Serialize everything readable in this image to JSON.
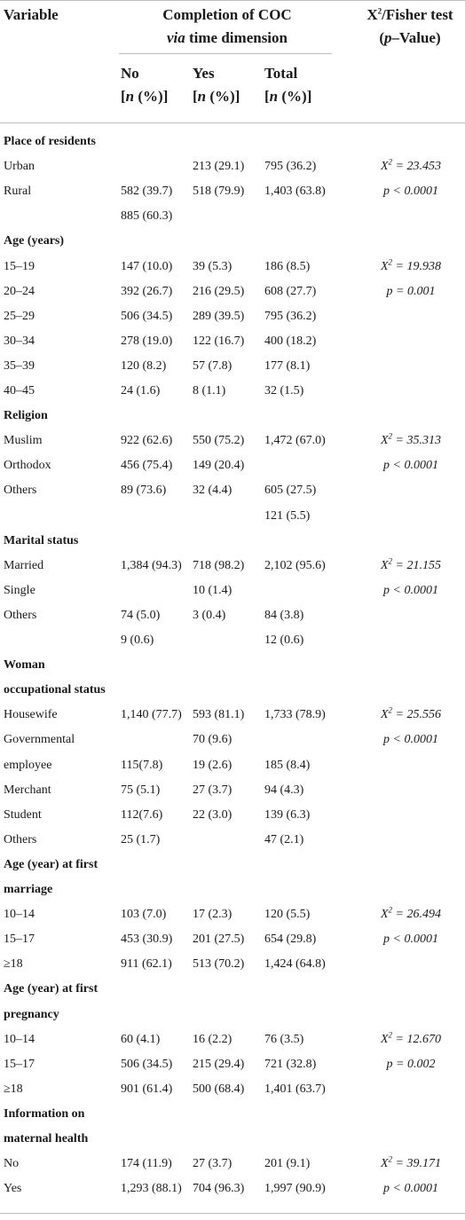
{
  "header": {
    "variable": "Variable",
    "completion_line1": "Completion of COC",
    "completion_via": "via",
    "completion_line2_rest": " time dimension",
    "test_x": "X",
    "test_sup": "2",
    "test_rest": "/Fisher test",
    "pvalue_open": "(",
    "pvalue_p": "p",
    "pvalue_rest": "–Value)",
    "no": "No",
    "yes": "Yes",
    "total": "Total",
    "n_open": "[",
    "n_n": "n",
    "n_rest": " (%)]"
  },
  "rows": [
    {
      "label": "Place of residents",
      "section": true
    },
    {
      "label": "Urban",
      "no": "",
      "yes": "213 (29.1)",
      "total": "795 (36.2)",
      "stat": "X² = 23.453"
    },
    {
      "label": "Rural",
      "no": "582 (39.7)",
      "yes": "518 (79.9)",
      "total": "1,403 (63.8)",
      "stat": "p < 0.0001"
    },
    {
      "label": "",
      "no": "885 (60.3)",
      "yes": "",
      "total": "",
      "stat": ""
    },
    {
      "label": "Age (years)",
      "section": true
    },
    {
      "label": "15–19",
      "no": "147 (10.0)",
      "yes": "39 (5.3)",
      "total": "186 (8.5)",
      "stat": "X² = 19.938"
    },
    {
      "label": "20–24",
      "no": "392 (26.7)",
      "yes": "216 (29.5)",
      "total": "608 (27.7)",
      "stat": "p = 0.001"
    },
    {
      "label": "25–29",
      "no": "506 (34.5)",
      "yes": "289 (39.5)",
      "total": "795 (36.2)",
      "stat": ""
    },
    {
      "label": "30–34",
      "no": "278 (19.0)",
      "yes": "122 (16.7)",
      "total": "400 (18.2)",
      "stat": ""
    },
    {
      "label": "35–39",
      "no": "120 (8.2)",
      "yes": "57 (7.8)",
      "total": "177 (8.1)",
      "stat": ""
    },
    {
      "label": "40–45",
      "no": "24 (1.6)",
      "yes": "8 (1.1)",
      "total": "32 (1.5)",
      "stat": ""
    },
    {
      "label": "Religion",
      "section": true
    },
    {
      "label": "Muslim",
      "no": "922 (62.6)",
      "yes": "550 (75.2)",
      "total": "1,472 (67.0)",
      "stat": "X² = 35.313"
    },
    {
      "label": "Orthodox",
      "no": "456 (75.4)",
      "yes": "149 (20.4)",
      "total": "",
      "stat": "p < 0.0001"
    },
    {
      "label": "Others",
      "no": "89 (73.6)",
      "yes": "32 (4.4)",
      "total": "605 (27.5)",
      "stat": ""
    },
    {
      "label": "",
      "no": "",
      "yes": "",
      "total": "121 (5.5)",
      "stat": ""
    },
    {
      "label": "Marital status",
      "section": true
    },
    {
      "label": "Married",
      "no": "1,384 (94.3)",
      "yes": "718 (98.2)",
      "total": "2,102 (95.6)",
      "stat": "X² = 21.155"
    },
    {
      "label": "Single",
      "no": "",
      "yes": "10 (1.4)",
      "total": "",
      "stat": "p < 0.0001"
    },
    {
      "label": "Others",
      "no": "74 (5.0)",
      "yes": "3 (0.4)",
      "total": "84 (3.8)",
      "stat": ""
    },
    {
      "label": "",
      "no": "9 (0.6)",
      "yes": "",
      "total": "12 (0.6)",
      "stat": ""
    },
    {
      "label": "Woman",
      "section": true
    },
    {
      "label": "occupational status",
      "section": true
    },
    {
      "label": "Housewife",
      "no": "1,140 (77.7)",
      "yes": "593 (81.1)",
      "total": "1,733 (78.9)",
      "stat": "X² = 25.556"
    },
    {
      "label": "Governmental",
      "no": "",
      "yes": "70 (9.6)",
      "total": "",
      "stat": "p < 0.0001"
    },
    {
      "label": "employee",
      "no": "115(7.8)",
      "yes": "19 (2.6)",
      "total": "185 (8.4)",
      "stat": ""
    },
    {
      "label": "Merchant",
      "no": "75 (5.1)",
      "yes": "27 (3.7)",
      "total": "94 (4.3)",
      "stat": ""
    },
    {
      "label": "Student",
      "no": "112(7.6)",
      "yes": "22 (3.0)",
      "total": "139 (6.3)",
      "stat": ""
    },
    {
      "label": "Others",
      "no": "25 (1.7)",
      "yes": "",
      "total": "47 (2.1)",
      "stat": ""
    },
    {
      "label": "Age (year) at first",
      "section": true
    },
    {
      "label": "marriage",
      "section": true
    },
    {
      "label": "10–14",
      "no": "103 (7.0)",
      "yes": "17 (2.3)",
      "total": "120 (5.5)",
      "stat": "X² = 26.494"
    },
    {
      "label": "15–17",
      "no": "453 (30.9)",
      "yes": "201 (27.5)",
      "total": "654 (29.8)",
      "stat": "p < 0.0001"
    },
    {
      "label": "≥18",
      "no": "911 (62.1)",
      "yes": "513 (70.2)",
      "total": "1,424 (64.8)",
      "stat": ""
    },
    {
      "label": "Age (year) at first",
      "section": true
    },
    {
      "label": "pregnancy",
      "section": true
    },
    {
      "label": "10–14",
      "no": "60 (4.1)",
      "yes": "16 (2.2)",
      "total": "76 (3.5)",
      "stat": "X² = 12.670"
    },
    {
      "label": "15–17",
      "no": "506 (34.5)",
      "yes": "215 (29.4)",
      "total": "721 (32.8)",
      "stat": "p = 0.002"
    },
    {
      "label": "≥18",
      "no": "901 (61.4)",
      "yes": "500 (68.4)",
      "total": "1,401 (63.7)",
      "stat": ""
    },
    {
      "label": "Information on",
      "section": true
    },
    {
      "label": "maternal health",
      "section": true
    },
    {
      "label": "No",
      "no": "174 (11.9)",
      "yes": "27 (3.7)",
      "total": "201 (9.1)",
      "stat": "X² = 39.171"
    },
    {
      "label": "Yes",
      "no": "1,293 (88.1)",
      "yes": "704 (96.3)",
      "total": "1,997 (90.9)",
      "stat": "p < 0.0001"
    }
  ]
}
